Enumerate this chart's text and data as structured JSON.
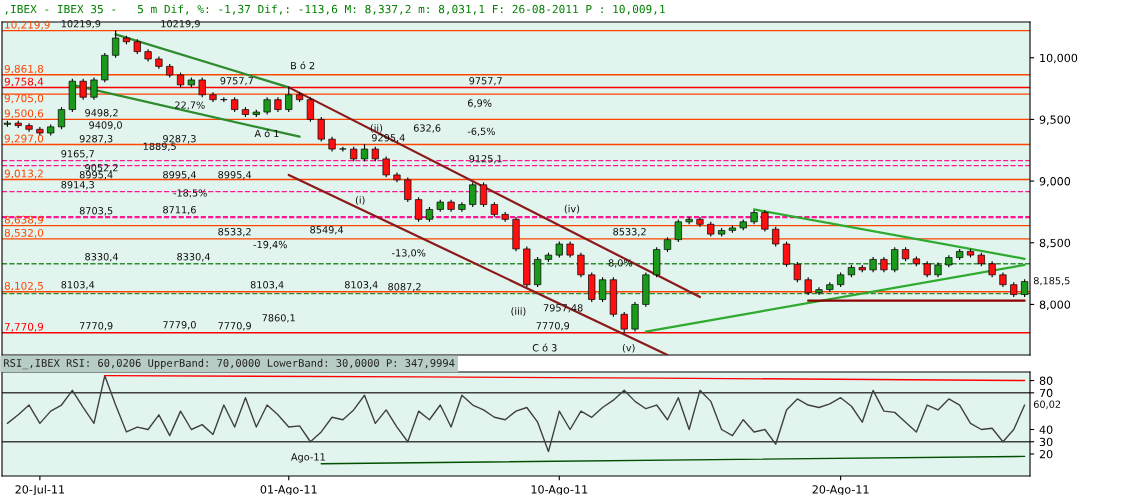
{
  "chart_data": [
    {
      "type": "candlestick",
      "title": ",IBEX - IBEX 35 -   5 m Dif, %: -1,37 Dif,: -113,6 M: 8,337,2 m: 8,031,1 F: 26-08-2011 P : 10,009,1",
      "categories": [
        null,
        null,
        null,
        null,
        null,
        null,
        null,
        null,
        null,
        null,
        null,
        null,
        null,
        null,
        null,
        null,
        null,
        null,
        null,
        null,
        null,
        null,
        null,
        null,
        null,
        null,
        null,
        null,
        null,
        null,
        null,
        null,
        null,
        null,
        null,
        null,
        null,
        null,
        null,
        null,
        null,
        null,
        null,
        null,
        null,
        null,
        null,
        null,
        null,
        null,
        null,
        null,
        null,
        null,
        null,
        null,
        null,
        null,
        null,
        null,
        null,
        null,
        null,
        null,
        null,
        null,
        null,
        null,
        null,
        null,
        null,
        null,
        null,
        null,
        null,
        null,
        null,
        null,
        null,
        null,
        null,
        null,
        null,
        null,
        null,
        null,
        null,
        null,
        null,
        null,
        null,
        null,
        null,
        null,
        null
      ],
      "ohlc": [
        [
          9460,
          9485,
          9445,
          9470
        ],
        [
          9470,
          9485,
          9435,
          9450
        ],
        [
          9450,
          9465,
          9405,
          9420
        ],
        [
          9420,
          9435,
          9375,
          9390
        ],
        [
          9390,
          9455,
          9375,
          9440
        ],
        [
          9440,
          9595,
          9425,
          9580
        ],
        [
          9580,
          9825,
          9565,
          9810
        ],
        [
          9810,
          9825,
          9665,
          9680
        ],
        [
          9680,
          9835,
          9665,
          9820
        ],
        [
          9820,
          10035,
          9805,
          10020
        ],
        [
          10020,
          10219.9,
          10005,
          10160
        ],
        [
          10160,
          10175,
          10115,
          10130
        ],
        [
          10130,
          10145,
          10035,
          10050
        ],
        [
          10050,
          10065,
          9975,
          9990
        ],
        [
          9990,
          10005,
          9915,
          9930
        ],
        [
          9930,
          9945,
          9845,
          9860
        ],
        [
          9860,
          9875,
          9765,
          9780
        ],
        [
          9780,
          9835,
          9765,
          9820
        ],
        [
          9820,
          9835,
          9685,
          9700
        ],
        [
          9700,
          9715,
          9645,
          9660
        ],
        [
          9660,
          9675,
          9645,
          9660
        ],
        [
          9660,
          9675,
          9565,
          9580
        ],
        [
          9580,
          9595,
          9525,
          9540
        ],
        [
          9540,
          9575,
          9525,
          9560
        ],
        [
          9560,
          9675,
          9545,
          9660
        ],
        [
          9660,
          9675,
          9565,
          9580
        ],
        [
          9580,
          9757.7,
          9565,
          9700
        ],
        [
          9700,
          9715,
          9645,
          9660
        ],
        [
          9660,
          9675,
          9485,
          9500
        ],
        [
          9500,
          9515,
          9325,
          9340
        ],
        [
          9340,
          9355,
          9245,
          9260
        ],
        [
          9260,
          9275,
          9245,
          9260
        ],
        [
          9260,
          9275,
          9165,
          9180
        ],
        [
          9180,
          9295.4,
          9165,
          9260
        ],
        [
          9260,
          9275,
          9165,
          9180
        ],
        [
          9180,
          9195,
          9035,
          9050
        ],
        [
          9050,
          9065,
          8995,
          9010
        ],
        [
          9010,
          9025,
          8835,
          8850
        ],
        [
          8850,
          8865,
          8675,
          8690
        ],
        [
          8690,
          8785,
          8675,
          8770
        ],
        [
          8770,
          8845,
          8755,
          8830
        ],
        [
          8830,
          8845,
          8755,
          8770
        ],
        [
          8770,
          8825,
          8755,
          8810
        ],
        [
          8810,
          8985,
          8795,
          8970
        ],
        [
          8970,
          8985,
          8795,
          8810
        ],
        [
          8810,
          8825,
          8715,
          8730
        ],
        [
          8730,
          8745,
          8675,
          8690
        ],
        [
          8690,
          8705,
          8435,
          8450
        ],
        [
          8450,
          8465,
          8145,
          8160
        ],
        [
          8160,
          8380,
          8145,
          8365
        ],
        [
          8365,
          8415,
          8350,
          8400
        ],
        [
          8400,
          8505,
          8385,
          8490
        ],
        [
          8490,
          8505,
          8385,
          8400
        ],
        [
          8400,
          8415,
          8225,
          8240
        ],
        [
          8240,
          8255,
          8025,
          8040
        ],
        [
          8040,
          8215,
          8025,
          8200
        ],
        [
          8200,
          8215,
          7905,
          7920
        ],
        [
          7920,
          7935,
          7770.9,
          7800
        ],
        [
          7800,
          8015,
          7785,
          8000
        ],
        [
          8000,
          8255,
          7985,
          8240
        ],
        [
          8240,
          8460,
          8225,
          8445
        ],
        [
          8445,
          8540,
          8430,
          8525
        ],
        [
          8525,
          8685,
          8510,
          8670
        ],
        [
          8670,
          8705,
          8655,
          8690
        ],
        [
          8690,
          8705,
          8635,
          8650
        ],
        [
          8650,
          8665,
          8555,
          8570
        ],
        [
          8570,
          8615,
          8555,
          8600
        ],
        [
          8600,
          8635,
          8585,
          8620
        ],
        [
          8620,
          8685,
          8605,
          8670
        ],
        [
          8670,
          8760,
          8655,
          8745
        ],
        [
          8745,
          8760,
          8595,
          8610
        ],
        [
          8610,
          8625,
          8475,
          8490
        ],
        [
          8490,
          8505,
          8310,
          8325
        ],
        [
          8325,
          8340,
          8185,
          8200
        ],
        [
          8200,
          8215,
          8080,
          8095
        ],
        [
          8095,
          8135,
          8080,
          8120
        ],
        [
          8120,
          8175,
          8105,
          8160
        ],
        [
          8160,
          8255,
          8145,
          8240
        ],
        [
          8240,
          8315,
          8225,
          8300
        ],
        [
          8300,
          8315,
          8265,
          8280
        ],
        [
          8280,
          8380,
          8265,
          8365
        ],
        [
          8365,
          8380,
          8265,
          8280
        ],
        [
          8280,
          8460,
          8265,
          8445
        ],
        [
          8445,
          8460,
          8355,
          8370
        ],
        [
          8370,
          8385,
          8315,
          8330
        ],
        [
          8330,
          8345,
          8225,
          8240
        ],
        [
          8240,
          8335,
          8225,
          8320
        ],
        [
          8320,
          8395,
          8305,
          8380
        ],
        [
          8380,
          8445,
          8365,
          8430
        ],
        [
          8430,
          8445,
          8385,
          8400
        ],
        [
          8400,
          8415,
          8315,
          8330
        ],
        [
          8330,
          8345,
          8225,
          8240
        ],
        [
          8240,
          8255,
          8145,
          8160
        ],
        [
          8160,
          8175,
          8065,
          8080
        ],
        [
          8080,
          8200,
          8065,
          8185.5
        ]
      ],
      "series": [
        {
          "type": "line",
          "color": "#2e8b2e",
          "values": [
            null,
            null,
            null,
            null,
            null,
            null,
            null,
            null,
            null,
            null,
            10190,
            null,
            null,
            null,
            null,
            null,
            null,
            null,
            null,
            null,
            null,
            null,
            null,
            null,
            null,
            null,
            9760,
            null,
            null,
            null,
            null,
            null,
            null,
            null,
            null,
            null,
            null,
            null,
            null,
            null,
            null,
            null,
            null,
            null,
            null,
            null,
            null,
            null,
            null,
            null,
            null,
            null,
            null,
            null,
            null,
            null,
            null,
            null,
            null,
            null,
            null,
            null,
            null,
            null,
            null,
            null,
            null,
            null,
            null,
            null,
            null,
            null,
            null,
            null,
            null,
            null,
            null,
            null,
            null,
            null,
            null,
            null,
            null,
            null,
            null,
            null,
            null,
            null,
            null,
            null,
            null,
            null,
            null,
            null,
            null
          ]
        },
        {
          "type": "line",
          "color": "#2e8b2e",
          "values": [
            null,
            null,
            null,
            null,
            null,
            null,
            9780,
            null,
            null,
            null,
            null,
            null,
            null,
            null,
            null,
            null,
            null,
            null,
            null,
            null,
            null,
            null,
            null,
            null,
            null,
            null,
            null,
            9360,
            null,
            null,
            null,
            null,
            null,
            null,
            null,
            null,
            null,
            null,
            null,
            null,
            null,
            null,
            null,
            null,
            null,
            null,
            null,
            null,
            null,
            null,
            null,
            null,
            null,
            null,
            null,
            null,
            null,
            null,
            null,
            null,
            null,
            null,
            null,
            null,
            null,
            null,
            null,
            null,
            null,
            null,
            null,
            null,
            null,
            null,
            null,
            null,
            null,
            null,
            null,
            null,
            null,
            null,
            null,
            null,
            null,
            null,
            null,
            null,
            null,
            null,
            null,
            null,
            null,
            null,
            null
          ]
        },
        {
          "type": "line",
          "color": "#8b1a1a",
          "values": [
            null,
            null,
            null,
            null,
            null,
            null,
            null,
            null,
            null,
            null,
            null,
            null,
            null,
            null,
            null,
            null,
            null,
            null,
            null,
            null,
            null,
            null,
            null,
            null,
            null,
            null,
            9760,
            null,
            null,
            null,
            null,
            null,
            null,
            null,
            null,
            null,
            null,
            null,
            null,
            null,
            null,
            null,
            null,
            null,
            null,
            null,
            null,
            null,
            null,
            null,
            null,
            null,
            null,
            null,
            null,
            null,
            null,
            null,
            null,
            null,
            null,
            null,
            null,
            null,
            8060,
            null,
            null,
            null,
            null,
            null,
            null,
            null,
            null,
            null,
            null,
            null,
            null,
            null,
            null,
            null,
            null,
            null,
            null,
            null,
            null,
            null,
            null,
            null,
            null,
            null,
            null,
            null,
            null,
            null,
            null
          ]
        },
        {
          "type": "line",
          "color": "#8b1a1a",
          "values": [
            null,
            null,
            null,
            null,
            null,
            null,
            null,
            null,
            null,
            null,
            null,
            null,
            null,
            null,
            null,
            null,
            null,
            null,
            null,
            null,
            null,
            null,
            null,
            null,
            null,
            null,
            9050,
            null,
            null,
            null,
            null,
            null,
            null,
            null,
            null,
            null,
            null,
            null,
            null,
            null,
            null,
            null,
            null,
            null,
            null,
            null,
            null,
            null,
            null,
            null,
            null,
            null,
            null,
            null,
            null,
            null,
            null,
            null,
            null,
            null,
            null,
            7590,
            null,
            null,
            null,
            null,
            null,
            null,
            null,
            null,
            null,
            null,
            null,
            null,
            null,
            null,
            null,
            null,
            null,
            null,
            null,
            null,
            null,
            null,
            null,
            null,
            null,
            null,
            null,
            null,
            null,
            null,
            null,
            null,
            null
          ]
        },
        {
          "type": "line",
          "color": "#2eaa2e",
          "values": [
            null,
            null,
            null,
            null,
            null,
            null,
            null,
            null,
            null,
            null,
            null,
            null,
            null,
            null,
            null,
            null,
            null,
            null,
            null,
            null,
            null,
            null,
            null,
            null,
            null,
            null,
            null,
            null,
            null,
            null,
            null,
            null,
            null,
            null,
            null,
            null,
            null,
            null,
            null,
            null,
            null,
            null,
            null,
            null,
            null,
            null,
            null,
            null,
            null,
            null,
            null,
            null,
            null,
            null,
            null,
            null,
            null,
            null,
            null,
            null,
            null,
            null,
            null,
            null,
            null,
            null,
            null,
            null,
            null,
            8770,
            null,
            null,
            null,
            null,
            null,
            null,
            null,
            null,
            null,
            null,
            null,
            null,
            null,
            null,
            null,
            null,
            null,
            null,
            null,
            null,
            null,
            null,
            null,
            null,
            8370
          ]
        },
        {
          "type": "line",
          "color": "#2eaa2e",
          "values": [
            null,
            null,
            null,
            null,
            null,
            null,
            null,
            null,
            null,
            null,
            null,
            null,
            null,
            null,
            null,
            null,
            null,
            null,
            null,
            null,
            null,
            null,
            null,
            null,
            null,
            null,
            null,
            null,
            null,
            null,
            null,
            null,
            null,
            null,
            null,
            null,
            null,
            null,
            null,
            null,
            null,
            null,
            null,
            null,
            null,
            null,
            null,
            null,
            null,
            null,
            null,
            null,
            null,
            null,
            null,
            null,
            null,
            null,
            null,
            7780,
            null,
            null,
            null,
            null,
            null,
            null,
            null,
            null,
            null,
            null,
            null,
            null,
            null,
            null,
            null,
            null,
            null,
            null,
            null,
            null,
            null,
            null,
            null,
            null,
            null,
            null,
            null,
            null,
            null,
            null,
            null,
            null,
            null,
            null,
            8320
          ]
        },
        {
          "type": "line",
          "color": "#8b0000",
          "values": [
            null,
            null,
            null,
            null,
            null,
            null,
            null,
            null,
            null,
            null,
            null,
            null,
            null,
            null,
            null,
            null,
            null,
            null,
            null,
            null,
            null,
            null,
            null,
            null,
            null,
            null,
            null,
            null,
            null,
            null,
            null,
            null,
            null,
            null,
            null,
            null,
            null,
            null,
            null,
            null,
            null,
            null,
            null,
            null,
            null,
            null,
            null,
            null,
            null,
            null,
            null,
            null,
            null,
            null,
            null,
            null,
            null,
            null,
            null,
            null,
            null,
            null,
            null,
            null,
            null,
            null,
            null,
            null,
            null,
            null,
            null,
            null,
            null,
            null,
            8030,
            null,
            null,
            null,
            null,
            null,
            null,
            null,
            null,
            null,
            null,
            null,
            null,
            null,
            null,
            null,
            null,
            null,
            null,
            null,
            8030
          ]
        }
      ],
      "ylim": [
        7590,
        10290
      ],
      "yticks": [
        {
          "value": 8000,
          "label": "8,000"
        },
        {
          "value": 8500,
          "label": "8,500"
        },
        {
          "value": 9000,
          "label": "9,000"
        },
        {
          "value": 9500,
          "label": "9,500"
        },
        {
          "value": 10000,
          "label": "10,000"
        }
      ],
      "tick_labels": "y",
      "ref_lines": [
        {
          "axis": "y",
          "value": 10219.9,
          "label": "10,219,9",
          "color": "#ff4500"
        },
        {
          "axis": "y",
          "value": 9861.8,
          "label": "9,861,8",
          "color": "#ff4500"
        },
        {
          "axis": "y",
          "value": 9758.4,
          "label": "9,758,4",
          "color": "#ff0000"
        },
        {
          "axis": "y",
          "value": 9705.0,
          "label": "9,705,0",
          "color": "#ff4500"
        },
        {
          "axis": "y",
          "value": 9500.6,
          "label": "9,500,6",
          "color": "#ff4500"
        },
        {
          "axis": "y",
          "value": 9297.0,
          "label": "9,297,0",
          "color": "#ff4500"
        },
        {
          "axis": "y",
          "value": 9013.2,
          "label": "9,013,2",
          "color": "#ff4500"
        },
        {
          "axis": "y",
          "value": 8638.9,
          "label": "8,638,9",
          "color": "#ff4500"
        },
        {
          "axis": "y",
          "value": 8532.0,
          "label": "8,532,0",
          "color": "#ff4500"
        },
        {
          "axis": "y",
          "value": 8102.5,
          "label": "8,102,5",
          "color": "#ff4500"
        },
        {
          "axis": "y",
          "value": 7770.9,
          "label": "7,770,9",
          "color": "#ff0000"
        },
        {
          "axis": "y",
          "value": 9165.7,
          "color": "#ff1493",
          "line_style": "dashed"
        },
        {
          "axis": "y",
          "value": 9125.1,
          "color": "#ff1493",
          "line_style": "dashed"
        },
        {
          "axis": "y",
          "value": 8914.3,
          "color": "#ff1493",
          "line_style": "dashed"
        },
        {
          "axis": "y",
          "value": 8711.6,
          "color": "#ff1493",
          "line_style": "dashed"
        },
        {
          "axis": "y",
          "value": 8703.5,
          "color": "#ff1493",
          "line_style": "dashed"
        },
        {
          "axis": "y",
          "value": 8330.4,
          "color": "#2e8b2e",
          "line_style": "dashed"
        },
        {
          "axis": "y",
          "value": 8087.2,
          "color": "#2e8b2e",
          "line_style": "dashed"
        }
      ],
      "annotations": [
        {
          "text": "10219,9",
          "y": 10219.9
        },
        {
          "text": "10219,9",
          "y": 10219.9
        },
        "9409,0",
        {
          "text": "9498,2",
          "y": 9498.2
        },
        {
          "text": "9287,3",
          "y": 9287.3
        },
        {
          "text": "9287,3",
          "y": 9287.3
        },
        {
          "text": "9165,7",
          "y": 9165.7
        },
        {
          "text": "9052,2",
          "y": 9052.2
        },
        {
          "text": "8995,4",
          "y": 8995.4
        },
        {
          "text": "8995,4",
          "y": 8995.4
        },
        {
          "text": "8995,4",
          "y": 8995.4
        },
        {
          "text": "8914,3",
          "y": 8914.3
        },
        {
          "text": "8703,5",
          "y": 8703.5
        },
        {
          "text": "8711,6",
          "y": 8711.6
        },
        {
          "text": "8330,4",
          "y": 8330.4
        },
        {
          "text": "8330,4",
          "y": 8330.4
        },
        {
          "text": "8103,4",
          "y": 8103.4
        },
        {
          "text": "8103,4",
          "y": 8103.4
        },
        {
          "text": "7770,9",
          "y": 7770.9
        },
        {
          "text": "7779,0",
          "y": 7779
        },
        {
          "text": "7770,9",
          "y": 7770.9
        },
        {
          "text": "22,7%",
          "y": 9560
        },
        {
          "text": "9757,7",
          "y": 9757.7
        },
        {
          "text": "9757,7",
          "y": 9757.7
        },
        {
          "text": "9125,1",
          "y": 9125.1
        },
        {
          "text": "9295,4",
          "y": 9295.4
        },
        {
          "text": "8533,2",
          "y": 8533.2
        },
        {
          "text": "8549,4",
          "y": 8549.4
        },
        {
          "text": "8103,4",
          "y": 8103.4
        },
        {
          "text": "8087,2",
          "y": 8087.2
        },
        {
          "text": "8533,2",
          "y": 8533.2
        },
        {
          "text": "7770,9",
          "y": 7770.9
        },
        {
          "text": "B ó 2",
          "y": 9880
        },
        {
          "text": "A ó 1",
          "y": 9330
        },
        {
          "text": "(i)",
          "y": 8790
        },
        {
          "text": "(iv)",
          "y": 8720
        },
        "8,185,5",
        "1889,5",
        "-18,5%",
        "-19,4%",
        "6,9%",
        "-6,5%",
        "632,6",
        "-13,0%",
        "8,0%",
        "7957,48",
        "7860,1",
        "C ó 3",
        "(ii)",
        "(iii)",
        "(v)"
      ]
    },
    {
      "type": "line",
      "title": "RSI_,IBEX RSI: 60,0206 UpperBand: 70,0000 LowerBand: 30,0000 P: 347,9994",
      "categories": [
        null,
        null,
        null,
        "20-Jul-11",
        null,
        null,
        null,
        null,
        null,
        null,
        null,
        null,
        null,
        null,
        null,
        null,
        null,
        null,
        null,
        null,
        null,
        null,
        null,
        null,
        null,
        null,
        "01-Ago-11",
        null,
        null,
        null,
        null,
        null,
        null,
        null,
        null,
        null,
        null,
        null,
        null,
        null,
        null,
        null,
        null,
        null,
        null,
        null,
        null,
        null,
        null,
        null,
        null,
        "10-Ago-11",
        null,
        null,
        null,
        null,
        null,
        null,
        null,
        null,
        null,
        null,
        null,
        null,
        null,
        null,
        null,
        null,
        null,
        null,
        null,
        null,
        null,
        null,
        null,
        null,
        null,
        "20-Ago-11",
        null,
        null,
        null,
        null,
        null,
        null,
        null,
        null,
        null,
        null,
        null,
        null,
        null,
        null,
        null,
        null,
        null
      ],
      "series": [
        {
          "color": "#404040",
          "values": [
            45,
            52,
            60,
            45,
            55,
            60,
            72,
            58,
            45,
            84,
            60,
            38,
            42,
            40,
            52,
            35,
            55,
            40,
            44,
            36,
            60,
            42,
            66,
            42,
            60,
            52,
            42,
            43,
            30,
            38,
            50,
            48,
            56,
            68,
            45,
            56,
            42,
            30,
            55,
            48,
            60,
            42,
            68,
            60,
            56,
            50,
            48,
            55,
            58,
            46,
            22,
            55,
            40,
            55,
            50,
            58,
            64,
            72,
            63,
            57,
            60,
            48,
            66,
            40,
            72,
            63,
            40,
            35,
            48,
            38,
            40,
            28,
            56,
            65,
            60,
            58,
            61,
            66,
            59,
            46,
            72,
            55,
            54,
            46,
            38,
            60,
            56,
            65,
            60,
            45,
            40,
            41,
            30,
            40,
            60
          ]
        },
        {
          "color": "#ff0000",
          "values": [
            null,
            null,
            null,
            null,
            null,
            null,
            null,
            null,
            null,
            84,
            null,
            null,
            null,
            null,
            null,
            null,
            null,
            null,
            null,
            null,
            null,
            null,
            null,
            null,
            null,
            null,
            null,
            null,
            null,
            null,
            null,
            null,
            null,
            null,
            null,
            null,
            null,
            null,
            83,
            null,
            null,
            null,
            null,
            null,
            null,
            null,
            null,
            null,
            null,
            null,
            null,
            null,
            null,
            null,
            null,
            null,
            null,
            null,
            null,
            null,
            82,
            null,
            null,
            null,
            null,
            null,
            null,
            null,
            null,
            null,
            null,
            null,
            null,
            null,
            null,
            null,
            null,
            null,
            null,
            null,
            null,
            null,
            null,
            null,
            null,
            null,
            null,
            null,
            null,
            null,
            null,
            null,
            null,
            null,
            80
          ]
        },
        {
          "color": "#005000",
          "values": [
            null,
            null,
            null,
            null,
            null,
            null,
            null,
            null,
            null,
            null,
            null,
            null,
            null,
            null,
            null,
            null,
            null,
            null,
            null,
            null,
            null,
            null,
            null,
            null,
            null,
            null,
            null,
            null,
            null,
            12,
            null,
            null,
            null,
            null,
            null,
            null,
            null,
            null,
            null,
            null,
            null,
            null,
            null,
            null,
            null,
            null,
            null,
            null,
            null,
            null,
            null,
            null,
            null,
            null,
            null,
            null,
            null,
            null,
            null,
            null,
            null,
            null,
            null,
            null,
            null,
            null,
            null,
            null,
            null,
            null,
            null,
            null,
            null,
            null,
            null,
            null,
            null,
            null,
            null,
            null,
            null,
            null,
            null,
            null,
            null,
            null,
            null,
            null,
            null,
            null,
            null,
            null,
            null,
            null,
            18
          ]
        }
      ],
      "ylim": [
        2,
        87
      ],
      "yticks": [
        20,
        30,
        40,
        70,
        80
      ],
      "ref_lines": [
        {
          "axis": "y",
          "value": 70,
          "color": "#404040"
        },
        {
          "axis": "y",
          "value": 30,
          "color": "#404040"
        }
      ],
      "annotations": [
        "Ago-11",
        "60,02"
      ]
    }
  ]
}
